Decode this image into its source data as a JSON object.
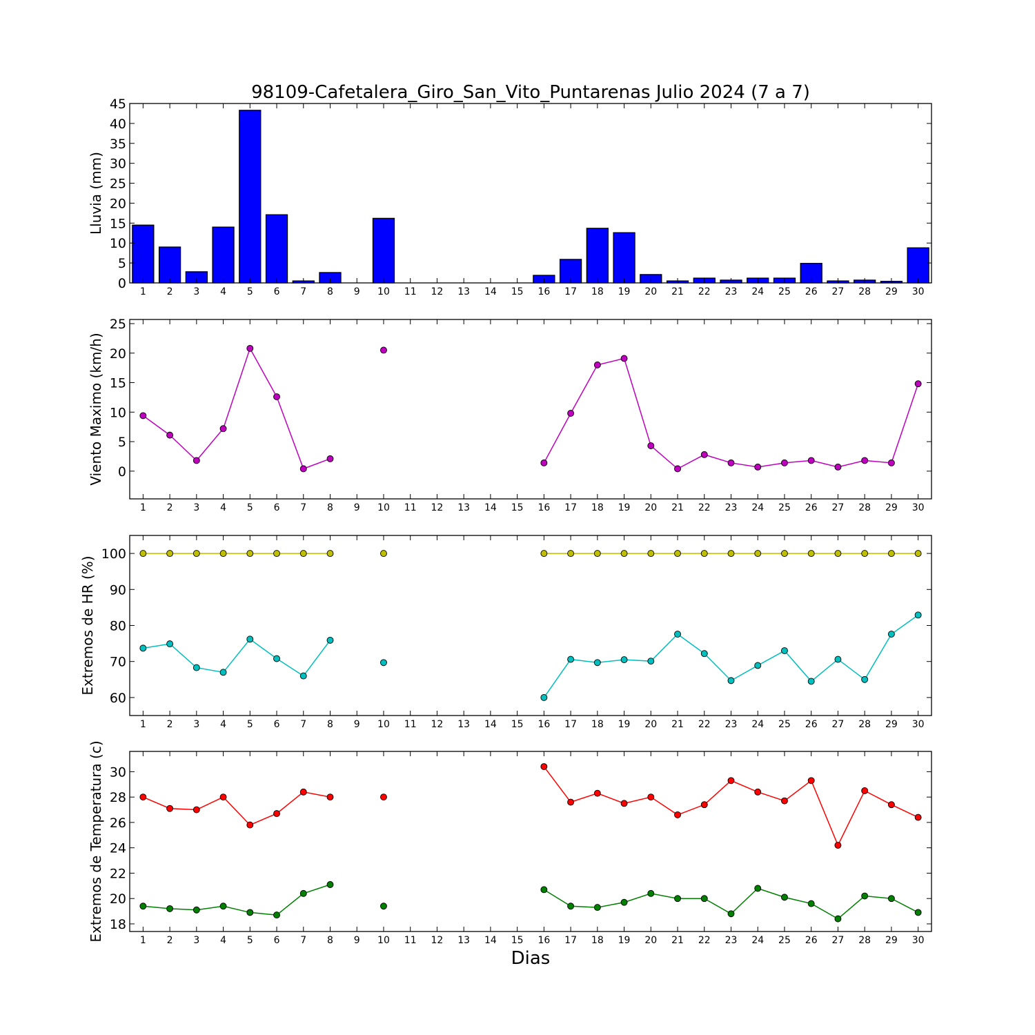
{
  "chart_data": {
    "type": "multi-panel",
    "title": "98109-Cafetalera_Giro_San_Vito_Puntarenas Julio 2024  (7 a 7)",
    "xlabel": "Dias",
    "days": [
      1,
      2,
      3,
      4,
      5,
      6,
      7,
      8,
      9,
      10,
      11,
      12,
      13,
      14,
      15,
      16,
      17,
      18,
      19,
      20,
      21,
      22,
      23,
      24,
      25,
      26,
      27,
      28,
      29,
      30
    ],
    "panels": [
      {
        "type": "bar",
        "ylabel": "Lluvia (mm)",
        "ylim": [
          0,
          45
        ],
        "yticks": [
          0,
          5,
          10,
          15,
          20,
          25,
          30,
          35,
          40,
          45
        ],
        "series": [
          {
            "color": "#0000ff",
            "values": [
              14.5,
              9.0,
              2.8,
              14.0,
              43.3,
              17.1,
              0.5,
              2.6,
              0,
              16.2,
              0,
              0,
              0,
              0,
              0,
              1.9,
              5.9,
              13.7,
              12.6,
              2.1,
              0.5,
              1.2,
              0.7,
              1.2,
              1.2,
              4.9,
              0.5,
              0.7,
              0.4,
              8.8
            ]
          }
        ]
      },
      {
        "type": "line",
        "ylabel": "Viento Maximo (km/h)",
        "ylim": [
          -4.7,
          25.7
        ],
        "yticks": [
          0,
          5,
          10,
          15,
          20,
          25
        ],
        "series": [
          {
            "color": "#bf00bf",
            "values": [
              9.4,
              6.1,
              1.8,
              7.2,
              20.8,
              12.6,
              0.4,
              2.1,
              null,
              20.5,
              null,
              null,
              null,
              null,
              null,
              1.4,
              9.8,
              18.0,
              19.1,
              4.3,
              0.4,
              2.8,
              1.4,
              0.7,
              1.4,
              1.8,
              0.7,
              1.8,
              1.4,
              14.8
            ]
          }
        ]
      },
      {
        "type": "line",
        "ylabel": "Extremos de HR (%)",
        "ylim": [
          55,
          105
        ],
        "yticks": [
          60,
          70,
          80,
          90,
          100
        ],
        "series": [
          {
            "color": "#bfbf00",
            "values": [
              100,
              100,
              100,
              100,
              100,
              100,
              100,
              100,
              null,
              100,
              null,
              null,
              null,
              null,
              null,
              100,
              100,
              100,
              100,
              100,
              100,
              100,
              100,
              100,
              100,
              100,
              100,
              100,
              100,
              100
            ]
          },
          {
            "color": "#00bfbf",
            "values": [
              73.7,
              74.9,
              68.3,
              67.0,
              76.2,
              70.8,
              66.0,
              75.9,
              null,
              69.7,
              null,
              null,
              null,
              null,
              null,
              60.0,
              70.6,
              69.7,
              70.5,
              70.1,
              77.6,
              72.2,
              64.7,
              68.9,
              73.0,
              64.5,
              70.6,
              65.0,
              77.6,
              82.9
            ]
          }
        ]
      },
      {
        "type": "line",
        "ylabel": "Extremos de Temperatura (c)",
        "ylim": [
          17.4,
          31.6
        ],
        "yticks": [
          18,
          20,
          22,
          24,
          26,
          28,
          30
        ],
        "series": [
          {
            "color": "#ff0000",
            "values": [
              28.0,
              27.1,
              27.0,
              28.0,
              25.8,
              26.7,
              28.4,
              28.0,
              null,
              28.0,
              null,
              null,
              null,
              null,
              null,
              30.4,
              27.6,
              28.3,
              27.5,
              28.0,
              26.6,
              27.4,
              29.3,
              28.4,
              27.7,
              29.3,
              24.2,
              28.5,
              27.4,
              26.4
            ]
          },
          {
            "color": "#008000",
            "values": [
              19.4,
              19.2,
              19.1,
              19.4,
              18.9,
              18.7,
              20.4,
              21.1,
              null,
              19.4,
              null,
              null,
              null,
              null,
              null,
              20.7,
              19.4,
              19.3,
              19.7,
              20.4,
              20.0,
              20.0,
              18.8,
              20.8,
              20.1,
              19.6,
              18.4,
              20.2,
              20.0,
              18.9
            ]
          }
        ]
      }
    ]
  }
}
